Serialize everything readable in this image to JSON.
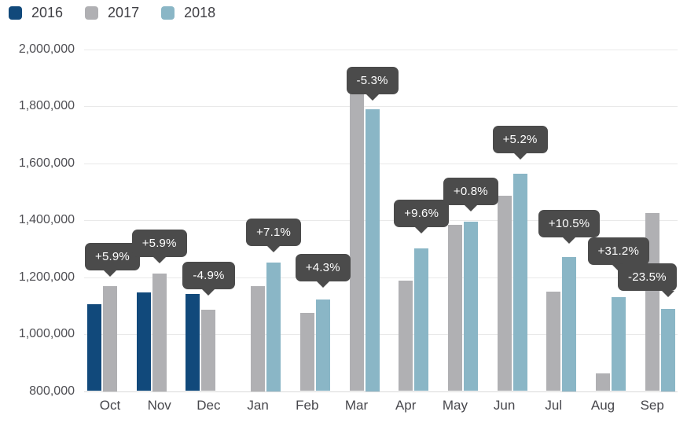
{
  "chart_data": {
    "type": "bar",
    "title": "",
    "legend_position": "top-left",
    "grid": true,
    "categories": [
      "Oct",
      "Nov",
      "Dec",
      "Jan",
      "Feb",
      "Mar",
      "Apr",
      "May",
      "Jun",
      "Jul",
      "Aug",
      "Sep"
    ],
    "series": [
      {
        "name": "2016",
        "color": "#11497b",
        "values": [
          1105000,
          1146000,
          1142000,
          null,
          null,
          null,
          null,
          null,
          null,
          null,
          null,
          null
        ]
      },
      {
        "name": "2017",
        "color": "#b0b0b3",
        "values": [
          1170000,
          1213000,
          1086000,
          1170000,
          1075000,
          1890000,
          1187000,
          1385000,
          1487000,
          1150000,
          862000,
          1425000
        ]
      },
      {
        "name": "2018",
        "color": "#8ab6c6",
        "values": [
          null,
          null,
          null,
          1253000,
          1121000,
          1790000,
          1301000,
          1396000,
          1564000,
          1271000,
          1131000,
          1090000
        ]
      }
    ],
    "annotations": [
      {
        "category": "Oct",
        "series": "2017",
        "label": "+5.9%"
      },
      {
        "category": "Nov",
        "series": "2017",
        "label": "+5.9%"
      },
      {
        "category": "Dec",
        "series": "2017",
        "label": "-4.9%"
      },
      {
        "category": "Jan",
        "series": "2018",
        "label": "+7.1%"
      },
      {
        "category": "Feb",
        "series": "2018",
        "label": "+4.3%"
      },
      {
        "category": "Mar",
        "series": "2018",
        "label": "-5.3%"
      },
      {
        "category": "Apr",
        "series": "2018",
        "label": "+9.6%"
      },
      {
        "category": "May",
        "series": "2018",
        "label": "+0.8%"
      },
      {
        "category": "Jun",
        "series": "2018",
        "label": "+5.2%"
      },
      {
        "category": "Jul",
        "series": "2018",
        "label": "+10.5%"
      },
      {
        "category": "Aug",
        "series": "2018",
        "label": "+31.2%"
      },
      {
        "category": "Sep",
        "series": "2018",
        "label": "-23.5%"
      }
    ],
    "y_axis": {
      "min": 800000,
      "max": 2000000,
      "step": 200000,
      "tick_labels": [
        "2,000,000",
        "1,800,000",
        "1,600,000",
        "1,400,000",
        "1,200,000",
        "1,000,000",
        "800,000"
      ]
    },
    "tooltip_style": {
      "background": "#4b4b4b",
      "text_color": "#ffffff"
    }
  }
}
